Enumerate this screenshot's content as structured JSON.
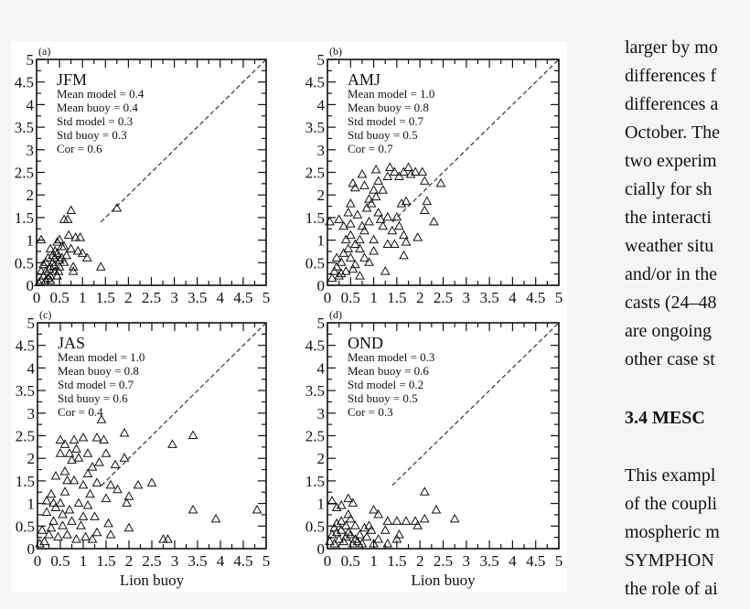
{
  "chart_data": [
    {
      "type": "scatter",
      "panel_label": "(a)",
      "season": "JFM",
      "stats": [
        "Mean model = 0.4",
        "Mean buoy = 0.4",
        "Std model = 0.3",
        "Std buoy = 0.3",
        "Cor = 0.6"
      ],
      "xlim": [
        0,
        5
      ],
      "ylim": [
        0,
        5
      ],
      "xlabel": "",
      "xticks": [
        "0",
        "0.5",
        "1",
        "1.5",
        "2",
        "2.5",
        "3",
        "3.5",
        "4",
        "4.5",
        "5"
      ],
      "yticks": [
        "0",
        "0.5",
        "1",
        "1.5",
        "2",
        "2.5",
        "3",
        "3.5",
        "4",
        "4.5",
        "5"
      ],
      "reference_line": "1:1 dashed",
      "marker": "triangle",
      "points": [
        [
          0.1,
          1.0
        ],
        [
          0.45,
          0.95
        ],
        [
          0.6,
          1.45
        ],
        [
          0.68,
          1.45
        ],
        [
          0.75,
          1.65
        ],
        [
          0.7,
          1.1
        ],
        [
          0.85,
          1.05
        ],
        [
          0.95,
          1.05
        ],
        [
          1.75,
          1.7
        ],
        [
          1.4,
          0.4
        ],
        [
          0.8,
          0.3
        ],
        [
          0.8,
          0.4
        ],
        [
          1.0,
          0.7
        ],
        [
          1.1,
          0.6
        ],
        [
          0.55,
          0.85
        ],
        [
          0.3,
          0.8
        ],
        [
          0.6,
          0.85
        ],
        [
          0.75,
          0.8
        ],
        [
          0.9,
          0.75
        ],
        [
          0.5,
          1.0
        ],
        [
          0.1,
          0.1
        ],
        [
          0.15,
          0.2
        ],
        [
          0.2,
          0.3
        ],
        [
          0.25,
          0.15
        ],
        [
          0.3,
          0.4
        ],
        [
          0.35,
          0.5
        ],
        [
          0.4,
          0.6
        ],
        [
          0.4,
          0.3
        ],
        [
          0.45,
          0.7
        ],
        [
          0.2,
          0.5
        ],
        [
          0.1,
          0.3
        ],
        [
          0.3,
          0.2
        ],
        [
          0.5,
          0.4
        ],
        [
          0.55,
          0.6
        ],
        [
          0.35,
          0.65
        ],
        [
          0.15,
          0.45
        ],
        [
          0.25,
          0.6
        ],
        [
          0.45,
          0.2
        ],
        [
          0.5,
          0.55
        ],
        [
          0.6,
          0.5
        ],
        [
          0.65,
          0.65
        ],
        [
          0.3,
          0.1
        ],
        [
          0.4,
          0.75
        ],
        [
          0.2,
          0.1
        ],
        [
          0.05,
          0.05
        ],
        [
          0.38,
          0.42
        ],
        [
          0.28,
          0.35
        ],
        [
          0.48,
          0.3
        ]
      ]
    },
    {
      "type": "scatter",
      "panel_label": "(b)",
      "season": "AMJ",
      "stats": [
        "Mean model = 1.0",
        "Mean buoy = 0.8",
        "Std model = 0.7",
        "Std buoy = 0.5",
        "Cor = 0.7"
      ],
      "xlim": [
        0,
        5
      ],
      "ylim": [
        0,
        5
      ],
      "xlabel": "",
      "xticks": [
        "0",
        "0.5",
        "1",
        "1.5",
        "2",
        "2.5",
        "3",
        "3.5",
        "4",
        "4.5",
        "5"
      ],
      "yticks": [
        "0",
        "0.5",
        "1",
        "1.5",
        "2",
        "2.5",
        "3",
        "3.5",
        "4",
        "4.5",
        "5"
      ],
      "reference_line": "1:1 dashed",
      "marker": "triangle",
      "points": [
        [
          0.05,
          1.4
        ],
        [
          0.25,
          1.45
        ],
        [
          0.45,
          1.6
        ],
        [
          0.5,
          1.8
        ],
        [
          0.55,
          2.25
        ],
        [
          0.6,
          2.15
        ],
        [
          0.75,
          2.45
        ],
        [
          0.8,
          2.2
        ],
        [
          1.05,
          2.55
        ],
        [
          0.9,
          1.9
        ],
        [
          1.0,
          2.1
        ],
        [
          1.1,
          2.3
        ],
        [
          1.2,
          2.1
        ],
        [
          1.3,
          2.4
        ],
        [
          1.35,
          2.6
        ],
        [
          1.45,
          2.5
        ],
        [
          1.55,
          2.4
        ],
        [
          1.65,
          2.5
        ],
        [
          1.75,
          2.6
        ],
        [
          1.8,
          2.45
        ],
        [
          1.9,
          2.5
        ],
        [
          2.05,
          2.5
        ],
        [
          2.1,
          2.3
        ],
        [
          2.45,
          2.25
        ],
        [
          2.15,
          1.85
        ],
        [
          2.1,
          1.65
        ],
        [
          2.3,
          1.4
        ],
        [
          1.95,
          1.05
        ],
        [
          1.65,
          0.65
        ],
        [
          1.25,
          0.3
        ],
        [
          1.6,
          1.8
        ],
        [
          1.7,
          1.85
        ],
        [
          1.5,
          1.5
        ],
        [
          1.55,
          1.3
        ],
        [
          1.65,
          1.1
        ],
        [
          1.7,
          0.95
        ],
        [
          1.45,
          0.9
        ],
        [
          1.3,
          1.5
        ],
        [
          1.2,
          1.3
        ],
        [
          1.3,
          0.9
        ],
        [
          1.1,
          1.6
        ],
        [
          0.9,
          1.4
        ],
        [
          0.8,
          1.2
        ],
        [
          0.7,
          1.0
        ],
        [
          0.6,
          0.9
        ],
        [
          0.5,
          1.1
        ],
        [
          0.4,
          1.0
        ],
        [
          0.35,
          0.7
        ],
        [
          0.3,
          0.5
        ],
        [
          0.2,
          0.4
        ],
        [
          0.15,
          0.3
        ],
        [
          0.1,
          0.15
        ],
        [
          0.25,
          0.2
        ],
        [
          0.4,
          0.3
        ],
        [
          0.5,
          0.6
        ],
        [
          0.6,
          0.45
        ],
        [
          0.7,
          0.8
        ],
        [
          0.8,
          0.6
        ],
        [
          0.9,
          0.5
        ],
        [
          1.0,
          0.75
        ],
        [
          1.0,
          1.0
        ],
        [
          0.85,
          1.7
        ],
        [
          0.95,
          1.8
        ],
        [
          1.05,
          1.95
        ],
        [
          0.65,
          1.55
        ],
        [
          0.75,
          1.3
        ],
        [
          0.45,
          0.8
        ],
        [
          0.3,
          0.25
        ],
        [
          0.2,
          0.6
        ],
        [
          0.55,
          0.35
        ],
        [
          1.15,
          1.45
        ],
        [
          1.4,
          1.2
        ],
        [
          0.7,
          0.2
        ],
        [
          0.35,
          1.3
        ],
        [
          0.5,
          1.35
        ]
      ]
    },
    {
      "type": "scatter",
      "panel_label": "(c)",
      "season": "JAS",
      "stats": [
        "Mean model = 1.0",
        "Mean buoy = 0.8",
        "Std model = 0.7",
        "Std buoy = 0.6",
        "Cor = 0.4"
      ],
      "xlim": [
        0,
        5
      ],
      "ylim": [
        0,
        5
      ],
      "xlabel": "Lion buoy",
      "xticks": [
        "0",
        "0.5",
        "1",
        "1.5",
        "2",
        "2.5",
        "3",
        "3.5",
        "4",
        "4.5",
        "5"
      ],
      "yticks": [
        "0",
        "0.5",
        "1",
        "1.5",
        "2",
        "2.5",
        "3",
        "3.5",
        "4",
        "4.5",
        "5"
      ],
      "reference_line": "1:1 dashed",
      "marker": "triangle",
      "points": [
        [
          1.4,
          2.85
        ],
        [
          1.9,
          2.55
        ],
        [
          2.95,
          2.3
        ],
        [
          3.4,
          2.5
        ],
        [
          3.4,
          0.85
        ],
        [
          3.9,
          0.65
        ],
        [
          4.8,
          0.85
        ],
        [
          2.2,
          1.4
        ],
        [
          2.5,
          1.45
        ],
        [
          2.75,
          0.2
        ],
        [
          2.85,
          0.2
        ],
        [
          2.0,
          0.45
        ],
        [
          1.6,
          0.3
        ],
        [
          1.55,
          0.55
        ],
        [
          1.95,
          1.0
        ],
        [
          2.0,
          1.15
        ],
        [
          1.75,
          1.3
        ],
        [
          1.6,
          1.4
        ],
        [
          1.5,
          1.1
        ],
        [
          1.7,
          1.85
        ],
        [
          1.9,
          2.0
        ],
        [
          1.5,
          2.1
        ],
        [
          1.3,
          2.45
        ],
        [
          1.45,
          2.4
        ],
        [
          1.0,
          2.45
        ],
        [
          0.8,
          2.4
        ],
        [
          0.5,
          2.4
        ],
        [
          0.6,
          2.3
        ],
        [
          0.5,
          2.1
        ],
        [
          0.7,
          2.1
        ],
        [
          0.9,
          2.0
        ],
        [
          1.1,
          2.1
        ],
        [
          1.2,
          1.8
        ],
        [
          1.3,
          1.45
        ],
        [
          0.4,
          1.6
        ],
        [
          0.6,
          1.7
        ],
        [
          0.8,
          1.5
        ],
        [
          1.0,
          1.4
        ],
        [
          1.15,
          1.2
        ],
        [
          0.3,
          1.2
        ],
        [
          0.5,
          1.0
        ],
        [
          0.7,
          0.85
        ],
        [
          0.9,
          1.0
        ],
        [
          1.1,
          0.95
        ],
        [
          1.25,
          0.7
        ],
        [
          0.2,
          0.8
        ],
        [
          0.35,
          0.6
        ],
        [
          0.55,
          0.5
        ],
        [
          0.75,
          0.6
        ],
        [
          0.95,
          0.5
        ],
        [
          0.1,
          0.4
        ],
        [
          0.25,
          0.3
        ],
        [
          0.45,
          0.25
        ],
        [
          0.65,
          0.3
        ],
        [
          0.85,
          0.2
        ],
        [
          1.05,
          0.25
        ],
        [
          1.2,
          0.2
        ],
        [
          1.3,
          0.35
        ],
        [
          0.15,
          0.15
        ],
        [
          0.05,
          0.1
        ],
        [
          0.35,
          1.0
        ],
        [
          0.6,
          1.25
        ],
        [
          0.75,
          1.95
        ],
        [
          0.85,
          2.2
        ],
        [
          0.4,
          0.9
        ],
        [
          0.2,
          1.05
        ],
        [
          1.35,
          1.9
        ],
        [
          1.1,
          1.65
        ],
        [
          0.55,
          0.75
        ],
        [
          0.65,
          1.5
        ],
        [
          0.3,
          0.45
        ],
        [
          1.0,
          0.7
        ]
      ]
    },
    {
      "type": "scatter",
      "panel_label": "(d)",
      "season": "OND",
      "stats": [
        "Mean model = 0.3",
        "Mean buoy = 0.6",
        "Std model = 0.2",
        "Std buoy = 0.5",
        "Cor = 0.3"
      ],
      "xlim": [
        0,
        5
      ],
      "ylim": [
        0,
        5
      ],
      "xlabel": "Lion buoy",
      "xticks": [
        "0",
        "0.5",
        "1",
        "1.5",
        "2",
        "2.5",
        "3",
        "3.5",
        "4",
        "4.5",
        "5"
      ],
      "yticks": [
        "0",
        "0.5",
        "1",
        "1.5",
        "2",
        "2.5",
        "3",
        "3.5",
        "4",
        "4.5",
        "5"
      ],
      "reference_line": "1:1 dashed",
      "marker": "triangle",
      "points": [
        [
          0.1,
          1.05
        ],
        [
          0.2,
          0.9
        ],
        [
          0.3,
          0.95
        ],
        [
          0.45,
          1.1
        ],
        [
          0.55,
          1.0
        ],
        [
          0.45,
          0.75
        ],
        [
          0.5,
          0.65
        ],
        [
          1.0,
          0.85
        ],
        [
          1.1,
          0.75
        ],
        [
          1.3,
          0.6
        ],
        [
          1.5,
          0.6
        ],
        [
          1.7,
          0.6
        ],
        [
          1.9,
          0.6
        ],
        [
          1.95,
          0.5
        ],
        [
          2.1,
          1.25
        ],
        [
          2.1,
          0.65
        ],
        [
          2.35,
          0.85
        ],
        [
          2.75,
          0.65
        ],
        [
          1.25,
          0.4
        ],
        [
          1.55,
          0.3
        ],
        [
          1.5,
          0.2
        ],
        [
          1.3,
          0.1
        ],
        [
          1.1,
          0.2
        ],
        [
          1.0,
          0.1
        ],
        [
          0.9,
          0.5
        ],
        [
          0.8,
          0.45
        ],
        [
          0.7,
          0.3
        ],
        [
          0.6,
          0.2
        ],
        [
          0.5,
          0.3
        ],
        [
          0.4,
          0.5
        ],
        [
          0.3,
          0.4
        ],
        [
          0.2,
          0.55
        ],
        [
          0.1,
          0.3
        ],
        [
          0.05,
          0.15
        ],
        [
          0.15,
          0.1
        ],
        [
          0.25,
          0.2
        ],
        [
          0.35,
          0.15
        ],
        [
          0.45,
          0.35
        ],
        [
          0.55,
          0.1
        ],
        [
          0.65,
          0.15
        ],
        [
          0.75,
          0.1
        ],
        [
          0.85,
          0.25
        ],
        [
          0.95,
          0.4
        ],
        [
          0.3,
          0.6
        ],
        [
          0.2,
          0.35
        ],
        [
          0.4,
          0.25
        ],
        [
          0.6,
          0.5
        ],
        [
          0.15,
          0.45
        ]
      ]
    }
  ],
  "body_text": {
    "lines": [
      "larger by mo",
      "differences f",
      "differences a",
      "October. The",
      "two experim",
      "cially for sh",
      "the interacti",
      "weather situ",
      "and/or in the",
      "casts (24–48",
      "are ongoing",
      "other case st"
    ],
    "heading": "3.4   MESC",
    "lines2": [
      "This exampl",
      "of the coupli",
      "mospheric m",
      "SYMPHON",
      "the role of ai"
    ]
  }
}
